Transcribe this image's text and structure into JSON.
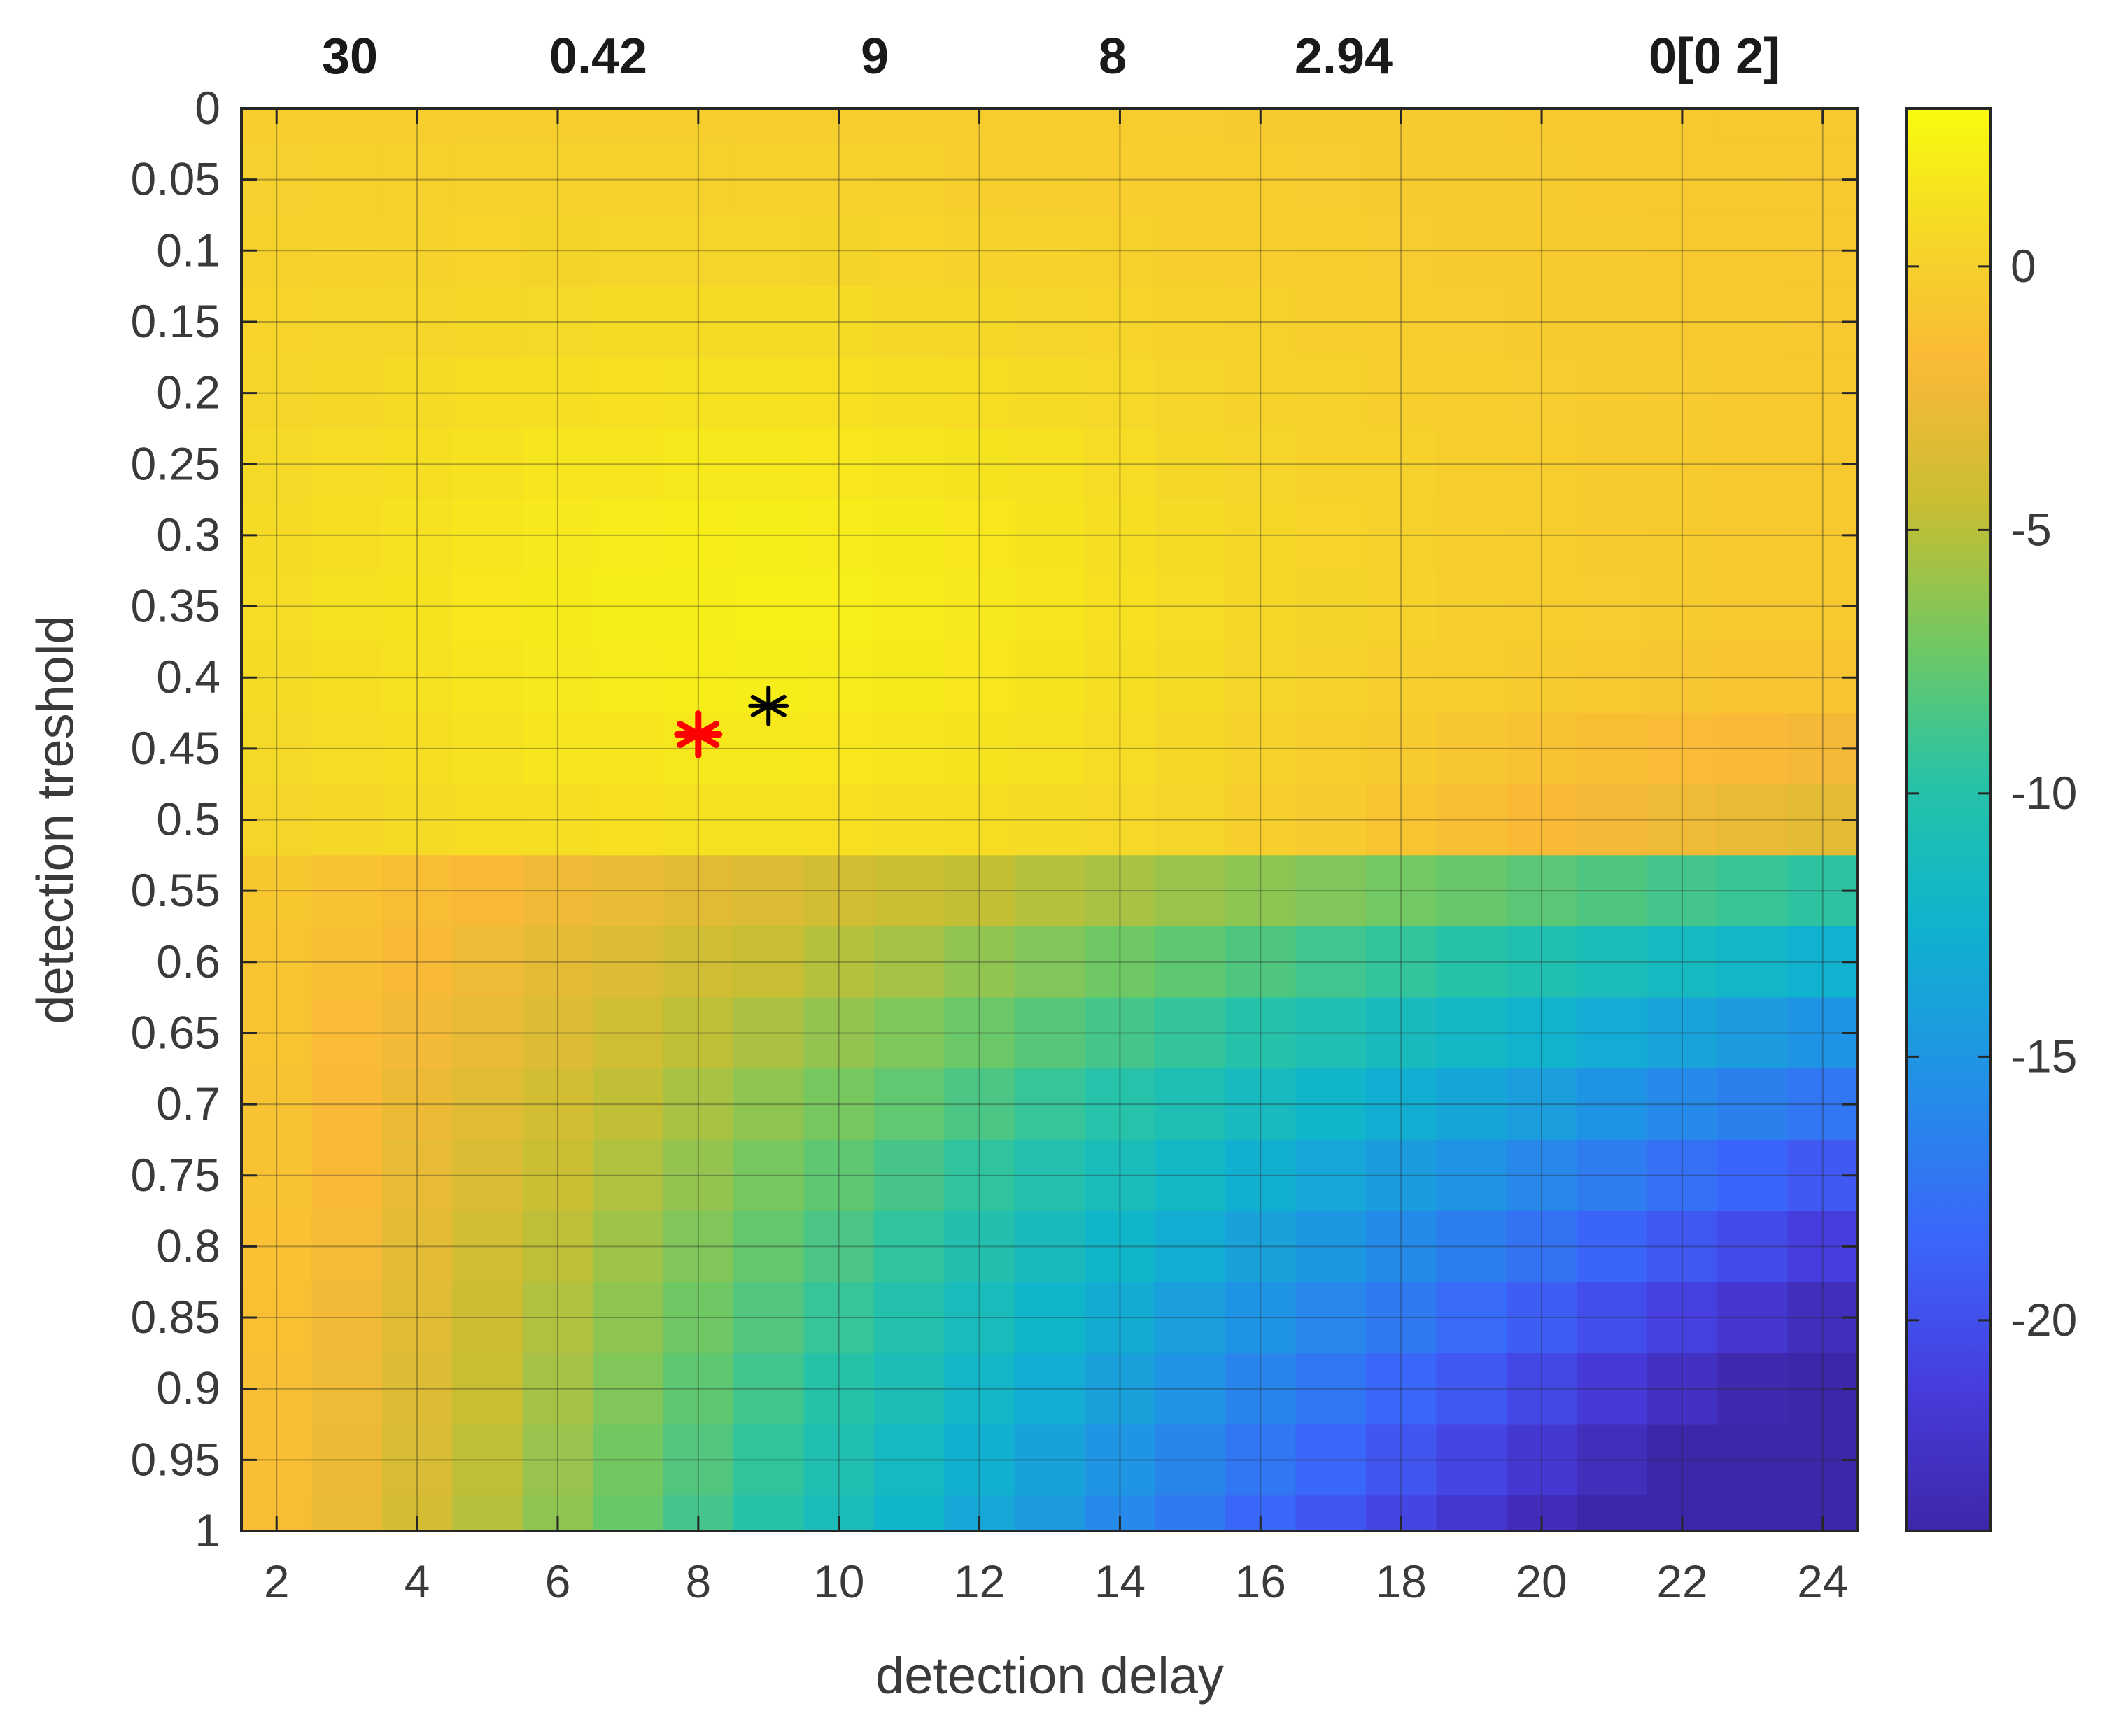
{
  "chart_data": {
    "type": "heatmap",
    "title": "",
    "top_annotations": [
      "30",
      "0.42",
      "9",
      "8",
      "2.94",
      "0[0  2]"
    ],
    "xlabel": "detection delay",
    "ylabel": "detection treshold",
    "x": [
      2,
      3,
      4,
      5,
      6,
      7,
      8,
      9,
      10,
      11,
      12,
      13,
      14,
      15,
      16,
      17,
      18,
      19,
      20,
      21,
      22,
      23,
      24
    ],
    "xlim": [
      1.5,
      24.5
    ],
    "x_ticks": [
      "2",
      "4",
      "6",
      "8",
      "10",
      "12",
      "14",
      "16",
      "18",
      "20",
      "22",
      "24"
    ],
    "x_tick_values": [
      2,
      4,
      6,
      8,
      10,
      12,
      14,
      16,
      18,
      20,
      22,
      24
    ],
    "y": [
      0,
      0.05,
      0.1,
      0.15,
      0.2,
      0.25,
      0.3,
      0.35,
      0.4,
      0.45,
      0.5,
      0.55,
      0.6,
      0.65,
      0.7,
      0.75,
      0.8,
      0.85,
      0.9,
      0.95,
      1
    ],
    "ylim": [
      0,
      1
    ],
    "y_direction": "reversed",
    "y_ticks": [
      "0",
      "0.05",
      "0.1",
      "0.15",
      "0.2",
      "0.25",
      "0.3",
      "0.35",
      "0.4",
      "0.45",
      "0.5",
      "0.55",
      "0.6",
      "0.65",
      "0.7",
      "0.75",
      "0.8",
      "0.85",
      "0.9",
      "0.95",
      "1"
    ],
    "y_tick_values": [
      0,
      0.05,
      0.1,
      0.15,
      0.2,
      0.25,
      0.3,
      0.35,
      0.4,
      0.45,
      0.5,
      0.55,
      0.6,
      0.65,
      0.7,
      0.75,
      0.8,
      0.85,
      0.9,
      0.95,
      1
    ],
    "grid": true,
    "colormap": "parula",
    "clim": [
      -24,
      3
    ],
    "colorbar": {
      "location": "right",
      "ticks": [
        "0",
        "-5",
        "-10",
        "-15",
        "-20"
      ],
      "tick_values": [
        0,
        -5,
        -10,
        -15,
        -20
      ]
    },
    "markers": [
      {
        "symbol": "*",
        "color": "#ff0000",
        "x": 8,
        "y": 0.44
      },
      {
        "symbol": "*",
        "color": "#000000",
        "x": 9,
        "y": 0.42
      }
    ],
    "model": {
      "description_values": "surface z(delay, threshold) approximated from the figure",
      "peak": {
        "x": 9,
        "y": 0.35,
        "value": 2.5
      }
    }
  }
}
